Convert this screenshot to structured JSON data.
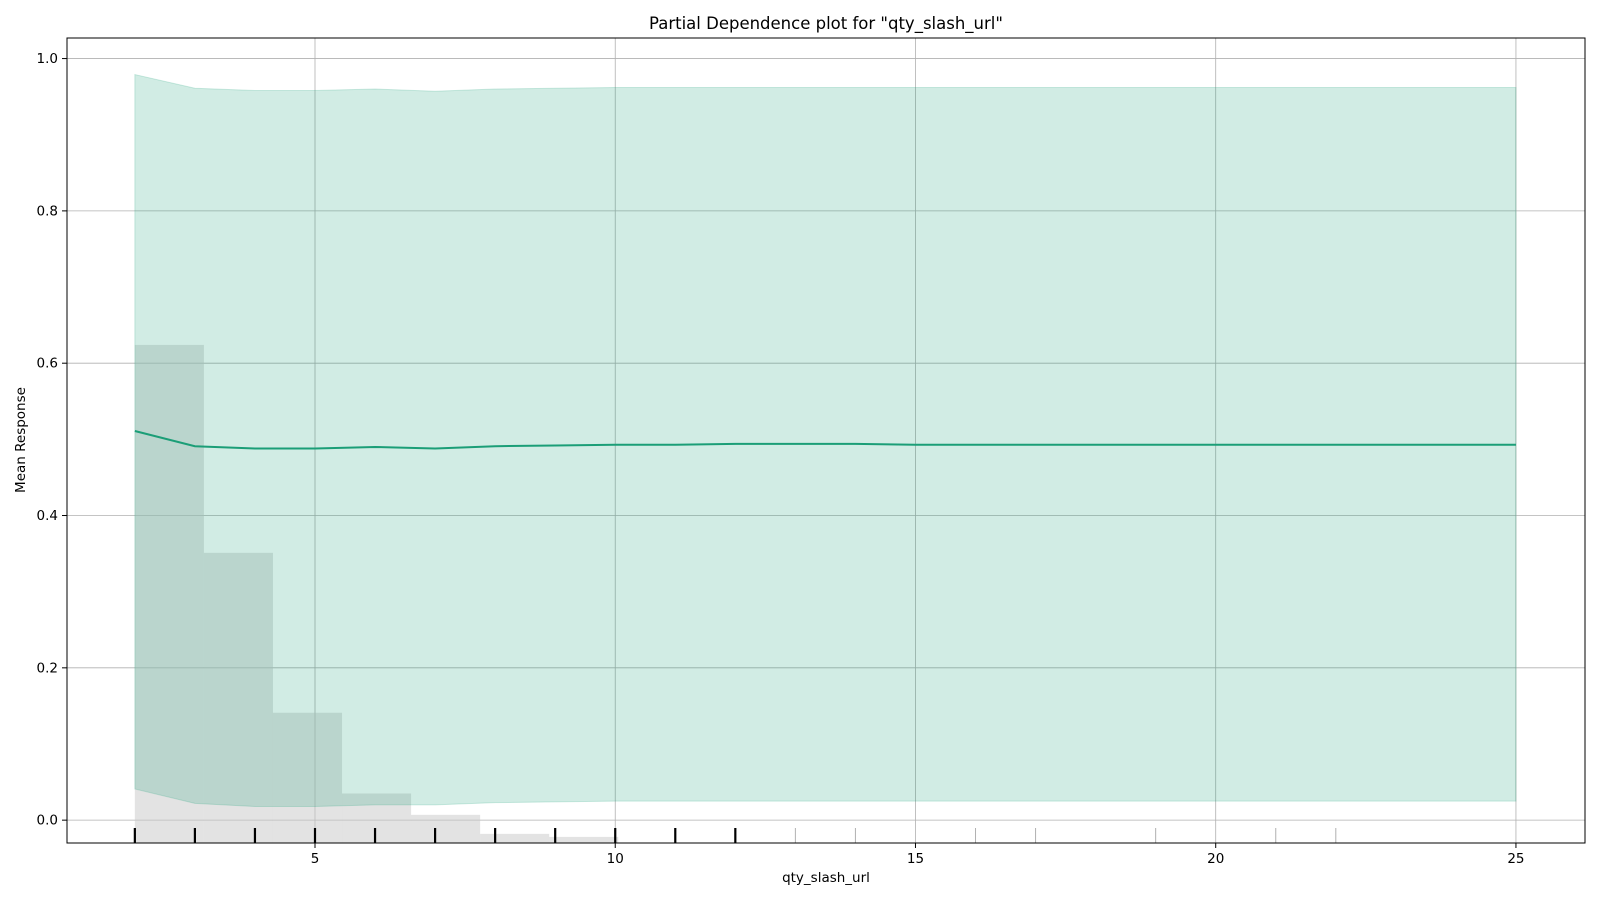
{
  "chart_data": {
    "type": "line",
    "title": "Partial Dependence plot for \"qty_slash_url\"",
    "xlabel": "qty_slash_url",
    "ylabel": "Mean Response",
    "xlim": [
      0.87,
      26.15
    ],
    "ylim": [
      -0.03,
      1.027
    ],
    "x_ticks": [
      5,
      10,
      15,
      20,
      25
    ],
    "y_ticks": [
      0.0,
      0.2,
      0.4,
      0.6,
      0.8,
      1.0
    ],
    "x_tick_labels": [
      "5",
      "10",
      "15",
      "20",
      "25"
    ],
    "y_tick_labels": [
      "0.0",
      "0.2",
      "0.4",
      "0.6",
      "0.8",
      "1.0"
    ],
    "grid": true,
    "colors": {
      "line": "#1b9e77",
      "band": "#1b9e77",
      "histogram": "#c8c8c8",
      "grid": "#b0b0b0",
      "rug_major": "#000000",
      "rug_minor": "#b0b0b0"
    },
    "series": [
      {
        "x": [
          2,
          3,
          4,
          5,
          6,
          7,
          8,
          9,
          10,
          11,
          12,
          13,
          14,
          15,
          16,
          17,
          18,
          19,
          20,
          21,
          22,
          23,
          24,
          25
        ],
        "values": [
          0.511,
          0.491,
          0.488,
          0.488,
          0.49,
          0.488,
          0.491,
          0.492,
          0.493,
          0.493,
          0.494,
          0.494,
          0.494,
          0.493,
          0.493,
          0.493,
          0.493,
          0.493,
          0.493,
          0.493,
          0.493,
          0.493,
          0.493,
          0.493
        ],
        "lower": [
          0.041,
          0.022,
          0.018,
          0.018,
          0.02,
          0.02,
          0.023,
          0.024,
          0.025,
          0.025,
          0.025,
          0.025,
          0.025,
          0.025,
          0.025,
          0.025,
          0.025,
          0.025,
          0.025,
          0.025,
          0.025,
          0.025,
          0.025,
          0.025
        ],
        "upper": [
          0.979,
          0.961,
          0.958,
          0.958,
          0.96,
          0.957,
          0.96,
          0.961,
          0.962,
          0.962,
          0.962,
          0.962,
          0.962,
          0.962,
          0.962,
          0.962,
          0.962,
          0.962,
          0.962,
          0.962,
          0.962,
          0.962,
          0.962,
          0.962
        ]
      }
    ],
    "histogram": {
      "bin_edges": [
        2,
        3.15,
        4.3,
        5.45,
        6.6,
        7.75,
        8.9,
        10.05
      ],
      "heights": [
        0.624,
        0.351,
        0.141,
        0.035,
        0.007,
        -0.018,
        -0.022
      ]
    },
    "rug": {
      "major": [
        2,
        3,
        4,
        5,
        6,
        7,
        8,
        9,
        10,
        11,
        12
      ],
      "minor": [
        13,
        14,
        16,
        17,
        19,
        21,
        22
      ]
    }
  }
}
